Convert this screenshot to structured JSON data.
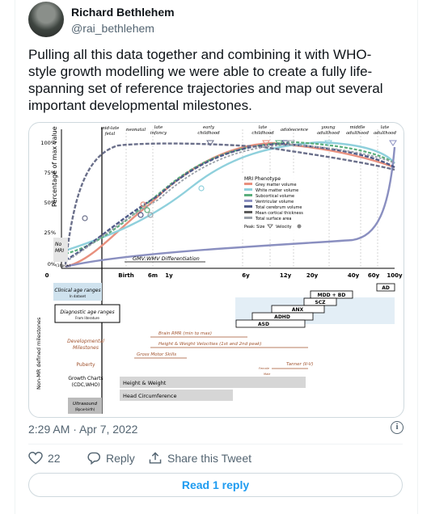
{
  "user": {
    "name": "Richard Bethlehem",
    "handle": "@rai_bethlehem"
  },
  "tweet": {
    "text_lines": [
      "Pulling all this data together and combining it with WHO-",
      "style growth modelling we were able to create a fully life-",
      "spanning set of reference trajectories and map out several",
      "important developmental milestones."
    ],
    "timestamp": "2:29 AM · Apr 7, 2022"
  },
  "figure": {
    "ylabel": "Percentage of max value",
    "yticks": [
      "100%",
      "75%",
      "50%",
      "25%",
      "0%"
    ],
    "xticks": [
      "0",
      "Birth",
      "6m",
      "1y",
      "6y",
      "12y",
      "20y",
      "40y",
      "60y",
      "100y"
    ],
    "stage_labels": [
      {
        "l1": "mid-late",
        "l2": "fetal"
      },
      {
        "l1": "neonatal",
        "l2": ""
      },
      {
        "l1": "late",
        "l2": "infancy"
      },
      {
        "l1": "early",
        "l2": "childhood"
      },
      {
        "l1": "late",
        "l2": "childhood"
      },
      {
        "l1": "adolescence",
        "l2": ""
      },
      {
        "l1": "young",
        "l2": "adulthood"
      },
      {
        "l1": "middle",
        "l2": "adulthood"
      },
      {
        "l1": "late",
        "l2": "adulthood"
      }
    ],
    "no_mri": [
      "No",
      "MRI"
    ],
    "pcw_label": "(16pcw)",
    "gmv_wmv": "GMV:WMV Differentiation",
    "legend_title": "MRI Phenotype",
    "legend_items": [
      {
        "label": "Grey matter volume",
        "color": "#e8907e"
      },
      {
        "label": "White matter volume",
        "color": "#8fd0dc"
      },
      {
        "label": "Subcortical volume",
        "color": "#5aae7c"
      },
      {
        "label": "Ventricular volume",
        "color": "#8a8fc0"
      },
      {
        "label": "Total cerebrum volume",
        "color": "#4f5a88"
      },
      {
        "label": "Mean cortical thickness",
        "color": "#5b5b5b"
      },
      {
        "label": "Total surface area",
        "color": "#9aa0a8"
      }
    ],
    "legend_peak": "Peak: Size",
    "legend_velocity": "Velocity",
    "side_label": "Non-MR defined milestones",
    "clinical": {
      "title": "Clinical age ranges",
      "sub": "In dataset"
    },
    "diagnostic": {
      "title": "Diagnostic age ranges",
      "sub": "From literature"
    },
    "dev_milestones": [
      "Developmental",
      "Milestones"
    ],
    "puberty": "Puberty",
    "growth_charts": [
      "Growth Charts",
      "(CDC,WHO)"
    ],
    "ultrasound": [
      "Ultrasound",
      "(8pcw-birth)"
    ],
    "disorders": [
      "AD",
      "MDD + BD",
      "SCZ",
      "ANX",
      "ADHD",
      "ASD"
    ],
    "milestones": [
      "Brain RMR (min to max)",
      "Height & Weight Velocities (1st and 2nd peak)",
      "Gross Motor Skills"
    ],
    "tanner": "Tanner (II-V)",
    "female": "Female",
    "male": "Male",
    "height_weight": "Height & Weight",
    "head_circ": "Head Circumference"
  },
  "actions": {
    "replies": "22",
    "reply_label": "Reply",
    "share_label": "Share this Tweet",
    "read_reply": "Read 1 reply"
  },
  "colors": {
    "accent": "#1d9bf0",
    "muted": "#536471",
    "border": "#cfd9de"
  }
}
